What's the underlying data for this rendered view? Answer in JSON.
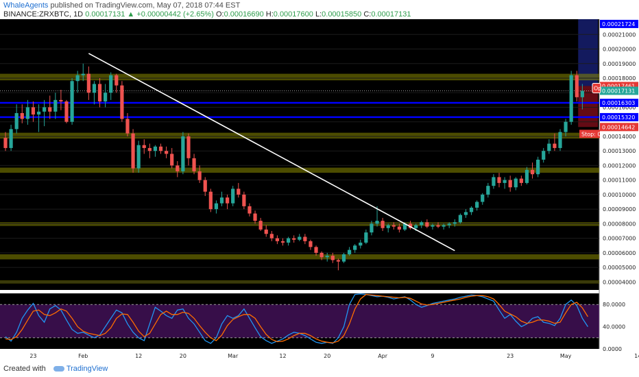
{
  "header": {
    "author": "WhaleAgents",
    "published": "published on TradingView.com, May 07, 2018 07:44 EST",
    "symbol": "BINANCE:ZRXBTC, 1D",
    "last": "0.00017131",
    "change": "+0.00000442 (+2.65%)",
    "o_label": "O:",
    "o_value": "0.00016690",
    "h_label": "H:",
    "h_value": "0.00017600",
    "l_label": "L:",
    "l_value": "0.00015850",
    "c_label": "C:",
    "c_value": "0.00017131",
    "up_arrow": "▲"
  },
  "footer": {
    "created_with": "Created with",
    "brand": "TradingView"
  },
  "colors": {
    "up": "#26a69a",
    "down": "#ef5350",
    "zone": "#8a8a00",
    "level": "#0000ff",
    "trend": "#ffffff",
    "stoch_k": "#2196f3",
    "stoch_d": "#ff6d00",
    "stoch_band": "#7b1fa2",
    "background": "#000000"
  },
  "chart_data": [
    {
      "type": "candlestick",
      "symbol": "BINANCE:ZRXBTC",
      "interval": "1D",
      "x_tick_labels": [
        "23",
        "Feb",
        "12",
        "20",
        "Mar",
        "12",
        "20",
        "Apr",
        "9",
        "23",
        "May",
        "14"
      ],
      "y_tick_labels": [
        "0.00004000",
        "0.00005000",
        "0.00006000",
        "0.00007000",
        "0.00008000",
        "0.00009000",
        "0.00010000",
        "0.00011000",
        "0.00012000",
        "0.00013000",
        "0.00014000",
        "0.00016000",
        "0.00017000",
        "0.00018000",
        "0.00019000",
        "0.00020000",
        "0.00021000"
      ],
      "price_labels": [
        {
          "text": "0.00021724",
          "price": 0.00021724,
          "style": "blue"
        },
        {
          "text": "0.00017461",
          "price": 0.00017461,
          "style": "red"
        },
        {
          "text": "0.00017131",
          "price": 0.00017131,
          "style": "green"
        },
        {
          "text": "0.00016303",
          "price": 0.00016303,
          "style": "blue"
        },
        {
          "text": "0.00015320",
          "price": 0.0001532,
          "style": "blue"
        },
        {
          "text": "0.00014642",
          "price": 0.00014642,
          "style": "red"
        }
      ],
      "position_labels": {
        "target": "Op",
        "stop": "Stop: 0"
      },
      "horizontal_levels": [
        0.00016303,
        0.0001532
      ],
      "zones": [
        [
          0.0001785,
          0.000183
        ],
        [
          0.0001385,
          0.0001425
        ],
        [
          0.000115,
          0.0001185
        ],
        [
          7.85e-05,
          8.1e-05
        ],
        [
          5.55e-05,
          5.9e-05
        ],
        [
          3.9e-05,
          4.1e-05
        ]
      ],
      "trend_lines": [
        {
          "from": [
            15,
            0.000197
          ],
          "to": [
            81,
            6.15e-05
          ]
        },
        {
          "from": [
            118,
            9.85e-05
          ],
          "to": [
            151,
            0.000169
          ]
        },
        {
          "from": [
            118,
            0.000114
          ],
          "to": [
            138,
            0.0001595
          ]
        }
      ],
      "candles": [
        [
          0.000139,
          0.000143,
          0.00013,
          0.000132
        ],
        [
          0.000132,
          0.000148,
          0.00013,
          0.000145
        ],
        [
          0.000145,
          0.000162,
          0.000142,
          0.000156
        ],
        [
          0.000156,
          0.000162,
          0.000149,
          0.000152
        ],
        [
          0.000152,
          0.000165,
          0.000148,
          0.00016
        ],
        [
          0.00016,
          0.000164,
          0.00015,
          0.000155
        ],
        [
          0.000155,
          0.000162,
          0.000143,
          0.000157
        ],
        [
          0.000157,
          0.000165,
          0.000147,
          0.00016
        ],
        [
          0.00016,
          0.000168,
          0.000152,
          0.000157
        ],
        [
          0.000157,
          0.00017,
          0.000152,
          0.000165
        ],
        [
          0.000165,
          0.000172,
          0.000158,
          0.000164
        ],
        [
          0.000164,
          0.000165,
          0.000149,
          0.00015
        ],
        [
          0.00015,
          0.00018,
          0.000148,
          0.000178
        ],
        [
          0.000178,
          0.000185,
          0.00017,
          0.000182
        ],
        [
          0.000182,
          0.00019,
          0.000178,
          0.000183
        ],
        [
          0.000183,
          0.000188,
          0.000165,
          0.00017
        ],
        [
          0.00017,
          0.000178,
          0.000162,
          0.000176
        ],
        [
          0.000176,
          0.00018,
          0.00016,
          0.000164
        ],
        [
          0.000164,
          0.000176,
          0.00016,
          0.00017
        ],
        [
          0.00017,
          0.000184,
          0.000165,
          0.000182
        ],
        [
          0.000182,
          0.000183,
          0.00017,
          0.000175
        ],
        [
          0.000175,
          0.000178,
          0.00015,
          0.000152
        ],
        [
          0.000152,
          0.000156,
          0.00014,
          0.000142
        ],
        [
          0.000142,
          0.000145,
          0.000115,
          0.000118
        ],
        [
          0.000118,
          0.000137,
          0.000115,
          0.000134
        ],
        [
          0.000134,
          0.000138,
          0.000128,
          0.000132
        ],
        [
          0.000132,
          0.000135,
          0.000125,
          0.00013
        ],
        [
          0.00013,
          0.000134,
          0.000126,
          0.000133
        ],
        [
          0.000133,
          0.000135,
          0.000128,
          0.00013
        ],
        [
          0.00013,
          0.000133,
          0.000125,
          0.000128
        ],
        [
          0.000128,
          0.000132,
          0.000118,
          0.00012
        ],
        [
          0.00012,
          0.000123,
          0.000112,
          0.000116
        ],
        [
          0.000116,
          0.000143,
          0.000114,
          0.00014
        ],
        [
          0.00014,
          0.000142,
          0.00012,
          0.000125
        ],
        [
          0.000125,
          0.000128,
          0.000114,
          0.000116
        ],
        [
          0.000116,
          0.00012,
          0.000108,
          0.00011
        ],
        [
          0.00011,
          0.000112,
          9.9e-05,
          0.000102
        ],
        [
          0.000102,
          0.000104,
          8.8e-05,
          9e-05
        ],
        [
          9e-05,
          9.6e-05,
          8.7e-05,
          9.4e-05
        ],
        [
          9.4e-05,
          0.000102,
          9.2e-05,
          9.8e-05
        ],
        [
          9.8e-05,
          0.0001,
          9e-05,
          9.4e-05
        ],
        [
          9.4e-05,
          0.000106,
          9.2e-05,
          0.000104
        ],
        [
          0.000104,
          0.000108,
          9.8e-05,
          0.0001
        ],
        [
          0.0001,
          0.000102,
          9e-05,
          9.2e-05
        ],
        [
          9.2e-05,
          9.4e-05,
          8.5e-05,
          8.7e-05
        ],
        [
          8.7e-05,
          8.9e-05,
          8e-05,
          8.2e-05
        ],
        [
          8.2e-05,
          8.4e-05,
          7.5e-05,
          7.6e-05
        ],
        [
          7.6e-05,
          7.9e-05,
          7.1e-05,
          7.3e-05
        ],
        [
          7.3e-05,
          7.5e-05,
          6.8e-05,
          7e-05
        ],
        [
          7e-05,
          7.2e-05,
          6.6e-05,
          6.8e-05
        ],
        [
          6.8e-05,
          7e-05,
          6.5e-05,
          6.7e-05
        ],
        [
          6.7e-05,
          7.1e-05,
          6.5e-05,
          7e-05
        ],
        [
          7e-05,
          7.2e-05,
          6.7e-05,
          6.9e-05
        ],
        [
          6.9e-05,
          7.3e-05,
          6.8e-05,
          7.1e-05
        ],
        [
          7.1e-05,
          7.3e-05,
          6.6e-05,
          6.8e-05
        ],
        [
          6.8e-05,
          6.9e-05,
          6.2e-05,
          6.4e-05
        ],
        [
          6.4e-05,
          6.5e-05,
          5.8e-05,
          6e-05
        ],
        [
          6e-05,
          6.1e-05,
          5.5e-05,
          5.7e-05
        ],
        [
          5.7e-05,
          6e-05,
          5.4e-05,
          5.8e-05
        ],
        [
          5.8e-05,
          6e-05,
          5.3e-05,
          5.5e-05
        ],
        [
          5.5e-05,
          5.6e-05,
          4.8e-05,
          5.4e-05
        ],
        [
          5.4e-05,
          6e-05,
          5.3e-05,
          5.9e-05
        ],
        [
          5.9e-05,
          6.4e-05,
          5.8e-05,
          6.2e-05
        ],
        [
          6.2e-05,
          6.6e-05,
          6e-05,
          6.5e-05
        ],
        [
          6.5e-05,
          6.9e-05,
          6.3e-05,
          6.7e-05
        ],
        [
          6.7e-05,
          7.6e-05,
          6.6e-05,
          7.4e-05
        ],
        [
          7.4e-05,
          8.2e-05,
          7.2e-05,
          8e-05
        ],
        [
          8e-05,
          9.2e-05,
          7.8e-05,
          8.2e-05
        ],
        [
          8.2e-05,
          8.4e-05,
          7.5e-05,
          7.7e-05
        ],
        [
          7.7e-05,
          8e-05,
          7.4e-05,
          7.9e-05
        ],
        [
          7.9e-05,
          8.1e-05,
          7.6e-05,
          7.8e-05
        ],
        [
          7.8e-05,
          8e-05,
          7.4e-05,
          7.6e-05
        ],
        [
          7.6e-05,
          8.1e-05,
          7.5e-05,
          8e-05
        ],
        [
          8e-05,
          8.2e-05,
          7.6e-05,
          7.7e-05
        ],
        [
          7.7e-05,
          8e-05,
          7.5e-05,
          7.9e-05
        ],
        [
          7.9e-05,
          8.2e-05,
          7.7e-05,
          8.1e-05
        ],
        [
          8.1e-05,
          8.3e-05,
          7.7e-05,
          7.8e-05
        ],
        [
          7.8e-05,
          8e-05,
          7.6e-05,
          7.9e-05
        ],
        [
          7.9e-05,
          8.1e-05,
          7.7e-05,
          7.8e-05
        ],
        [
          7.8e-05,
          8e-05,
          7.6e-05,
          7.9e-05
        ],
        [
          7.9e-05,
          8.1e-05,
          7.7e-05,
          8e-05
        ],
        [
          8e-05,
          8.3e-05,
          7.8e-05,
          8.1e-05
        ],
        [
          8.1e-05,
          8.7e-05,
          8e-05,
          8.6e-05
        ],
        [
          8.6e-05,
          9e-05,
          8.4e-05,
          8.8e-05
        ],
        [
          8.8e-05,
          9.2e-05,
          8.6e-05,
          9.1e-05
        ],
        [
          9.1e-05,
          9.6e-05,
          8.9e-05,
          9.5e-05
        ],
        [
          9.5e-05,
          0.000101,
          9.3e-05,
          0.0001
        ],
        [
          0.0001,
          0.000108,
          9.8e-05,
          0.000106
        ],
        [
          0.000106,
          0.000114,
          0.000104,
          0.000112
        ],
        [
          0.000112,
          0.000115,
          0.000105,
          0.000108
        ],
        [
          0.000108,
          0.000112,
          0.000104,
          0.00011
        ],
        [
          0.00011,
          0.000113,
          0.000102,
          0.000105
        ],
        [
          0.000105,
          0.000112,
          0.000103,
          0.000111
        ],
        [
          0.000111,
          0.000113,
          0.000106,
          0.000108
        ],
        [
          0.000108,
          0.000119,
          0.000107,
          0.000117
        ],
        [
          0.000117,
          0.000122,
          0.000111,
          0.000114
        ],
        [
          0.000114,
          0.000126,
          0.000112,
          0.000124
        ],
        [
          0.000124,
          0.000132,
          0.000122,
          0.00013
        ],
        [
          0.00013,
          0.000138,
          0.000128,
          0.000135
        ],
        [
          0.000135,
          0.000142,
          0.00013,
          0.000132
        ],
        [
          0.000132,
          0.000145,
          0.00013,
          0.000143
        ],
        [
          0.000143,
          0.000152,
          0.00014,
          0.00015
        ],
        [
          0.00015,
          0.000185,
          0.000148,
          0.000182
        ],
        [
          0.000182,
          0.000185,
          0.000164,
          0.0001669
        ],
        [
          0.0001669,
          0.000176,
          0.0001585,
          0.0001713
        ]
      ],
      "price_range": [
        3.45e-05,
        0.0002205
      ]
    },
    {
      "type": "line",
      "indicator": "Stochastic RSI",
      "y_tick_labels": [
        "0.0000",
        "40.0000",
        "80.0000"
      ],
      "ylim": [
        0,
        100
      ],
      "band": [
        20,
        80
      ],
      "series": [
        {
          "values": [
            22,
            14,
            30,
            55,
            70,
            82,
            60,
            48,
            72,
            78,
            70,
            52,
            35,
            28,
            30,
            25,
            20,
            25,
            40,
            55,
            70,
            65,
            45,
            30,
            20,
            15,
            45,
            75,
            68,
            60,
            55,
            70,
            72,
            55,
            45,
            30,
            15,
            10,
            20,
            45,
            60,
            55,
            60,
            72,
            55,
            38,
            22,
            15,
            10,
            14,
            18,
            25,
            30,
            28,
            24,
            18,
            12,
            10,
            12,
            10,
            20,
            40,
            80,
            98,
            99,
            98,
            96,
            94,
            95,
            93,
            90,
            92,
            94,
            88,
            80,
            75,
            78,
            82,
            84,
            86,
            88,
            90,
            93,
            95,
            97,
            96,
            94,
            90,
            86,
            70,
            55,
            62,
            50,
            40,
            45,
            55,
            58,
            48,
            46,
            42,
            55,
            80,
            88,
            78,
            55,
            40
          ]
        },
        {
          "values": [
            18,
            17,
            22,
            35,
            52,
            68,
            70,
            62,
            60,
            65,
            72,
            68,
            55,
            40,
            32,
            28,
            26,
            24,
            28,
            38,
            55,
            63,
            62,
            48,
            32,
            22,
            28,
            45,
            62,
            68,
            62,
            62,
            66,
            64,
            55,
            42,
            30,
            20,
            15,
            25,
            42,
            53,
            58,
            62,
            62,
            55,
            40,
            26,
            17,
            13,
            14,
            18,
            24,
            28,
            28,
            24,
            18,
            14,
            12,
            11,
            14,
            24,
            45,
            72,
            90,
            98,
            97,
            96,
            95,
            94,
            93,
            92,
            93,
            91,
            86,
            81,
            79,
            80,
            82,
            84,
            86,
            88,
            90,
            93,
            95,
            96,
            96,
            94,
            90,
            80,
            68,
            63,
            58,
            50,
            46,
            48,
            52,
            52,
            50,
            46,
            48,
            65,
            80,
            84,
            74,
            58
          ]
        }
      ]
    }
  ]
}
